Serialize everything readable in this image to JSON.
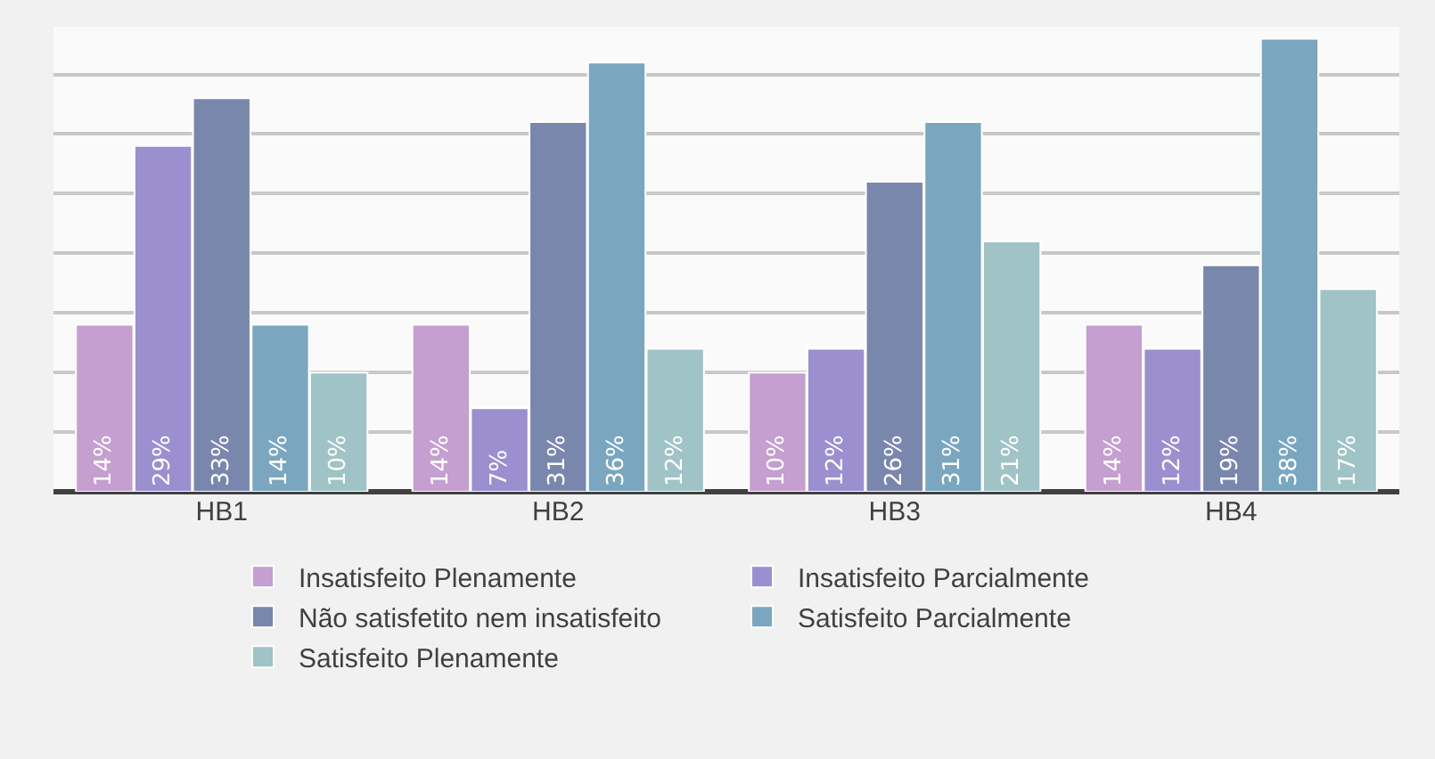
{
  "chart_data": {
    "type": "bar",
    "categories": [
      "HB1",
      "HB2",
      "HB3",
      "HB4"
    ],
    "series": [
      {
        "name": "Insatisfeito Plenamente",
        "color": "#c49fcf",
        "values": [
          14,
          14,
          10,
          14
        ],
        "value_labels": [
          "14%",
          "14%",
          "10%",
          "14%"
        ]
      },
      {
        "name": "Insatisfeito Parcialmente",
        "color": "#9b8fd0",
        "values": [
          29,
          7,
          12,
          12
        ],
        "value_labels": [
          "29%",
          "7%",
          "12%",
          "12%"
        ]
      },
      {
        "name": "Não satisfetito nem insatisfeito",
        "color": "#7a87ad",
        "values": [
          33,
          31,
          26,
          19
        ],
        "value_labels": [
          "33%",
          "31%",
          "26%",
          "19%"
        ]
      },
      {
        "name": "Satisfeito Parcialmente",
        "color": "#7aa7bf",
        "values": [
          14,
          36,
          31,
          38
        ],
        "value_labels": [
          "14%",
          "36%",
          "31%",
          "38%"
        ]
      },
      {
        "name": "Satisfeito Plenamente",
        "color": "#9fc3c7",
        "values": [
          10,
          12,
          21,
          17
        ],
        "value_labels": [
          "10%",
          "12%",
          "21%",
          "17%"
        ]
      }
    ],
    "ylim": [
      0,
      39
    ],
    "yticks": [
      {
        "value": 0,
        "label": null
      },
      {
        "value": 5,
        "label": null
      },
      {
        "value": 10,
        "label": null
      },
      {
        "value": 15,
        "label": null
      },
      {
        "value": 20,
        "label": null
      },
      {
        "value": 25,
        "label": null
      },
      {
        "value": 30,
        "label": null
      },
      {
        "value": 35,
        "label": null
      }
    ],
    "grid": "y",
    "legend": "bottom",
    "tick_labels": "x"
  }
}
